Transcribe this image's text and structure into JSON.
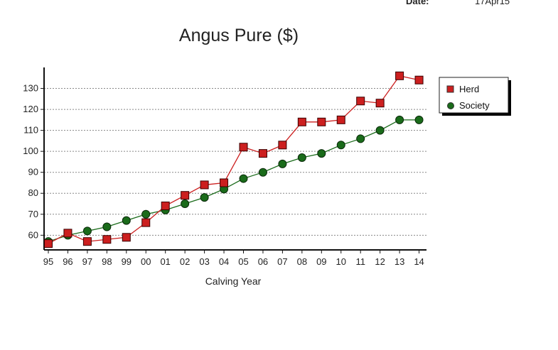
{
  "header": {
    "date_label": "Date:",
    "date_value": "17Apr15"
  },
  "colors": {
    "herd": "#cc1f1f",
    "society": "#1a6b1a",
    "grid": "#888888"
  },
  "chart_data": {
    "type": "line",
    "title": "Angus Pure ($)",
    "xlabel": "Calving Year",
    "ylabel": "",
    "categories": [
      "95",
      "96",
      "97",
      "98",
      "99",
      "00",
      "01",
      "02",
      "03",
      "04",
      "05",
      "06",
      "07",
      "08",
      "09",
      "10",
      "11",
      "12",
      "13",
      "14"
    ],
    "ylim": [
      53,
      140
    ],
    "yticks": [
      60,
      70,
      80,
      90,
      100,
      110,
      120,
      130
    ],
    "grid": true,
    "legend_position": "top-right",
    "series": [
      {
        "name": "Herd",
        "marker": "square",
        "values": [
          56,
          61,
          57,
          58,
          59,
          66,
          74,
          79,
          84,
          85,
          102,
          99,
          103,
          114,
          114,
          115,
          124,
          123,
          136,
          134
        ]
      },
      {
        "name": "Society",
        "marker": "circle",
        "values": [
          57,
          60,
          62,
          64,
          67,
          70,
          72,
          75,
          78,
          82,
          87,
          90,
          94,
          97,
          99,
          103,
          106,
          110,
          115,
          115
        ]
      }
    ]
  }
}
